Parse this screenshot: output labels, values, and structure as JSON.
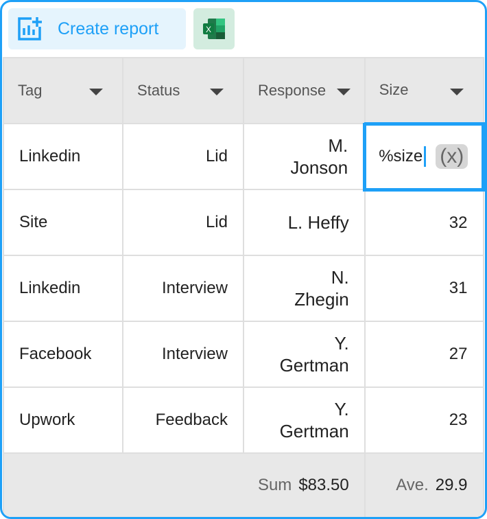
{
  "toolbar": {
    "create_report_label": "Create report",
    "excel_icon": "excel-icon",
    "chart_icon": "chart-add-icon"
  },
  "colors": {
    "accent": "#1ea0f7",
    "excel_bg": "#d3ecdf",
    "header_bg": "#e8e8e8"
  },
  "columns": [
    "Tag",
    "Status",
    "Response",
    "Size"
  ],
  "rows": [
    {
      "tag": "Linkedin",
      "status": "Lid",
      "response": [
        "M.",
        "Jonson"
      ],
      "size": ""
    },
    {
      "tag": "Site",
      "status": "Lid",
      "response": [
        "L. Heffy",
        ""
      ],
      "size": "32"
    },
    {
      "tag": "Linkedin",
      "status": "Interview",
      "response": [
        "N.",
        "Zhegin"
      ],
      "size": "31"
    },
    {
      "tag": "Facebook",
      "status": "Interview",
      "response": [
        "Y.",
        "Gertman"
      ],
      "size": "27"
    },
    {
      "tag": "Upwork",
      "status": "Feedback",
      "response": [
        "Y.",
        "Gertman"
      ],
      "size": "23"
    }
  ],
  "editor": {
    "value": "%size",
    "token": "(x)"
  },
  "footer": {
    "sum_label": "Sum",
    "sum_value": "$83.50",
    "ave_label": "Ave.",
    "ave_value": "29.9"
  }
}
